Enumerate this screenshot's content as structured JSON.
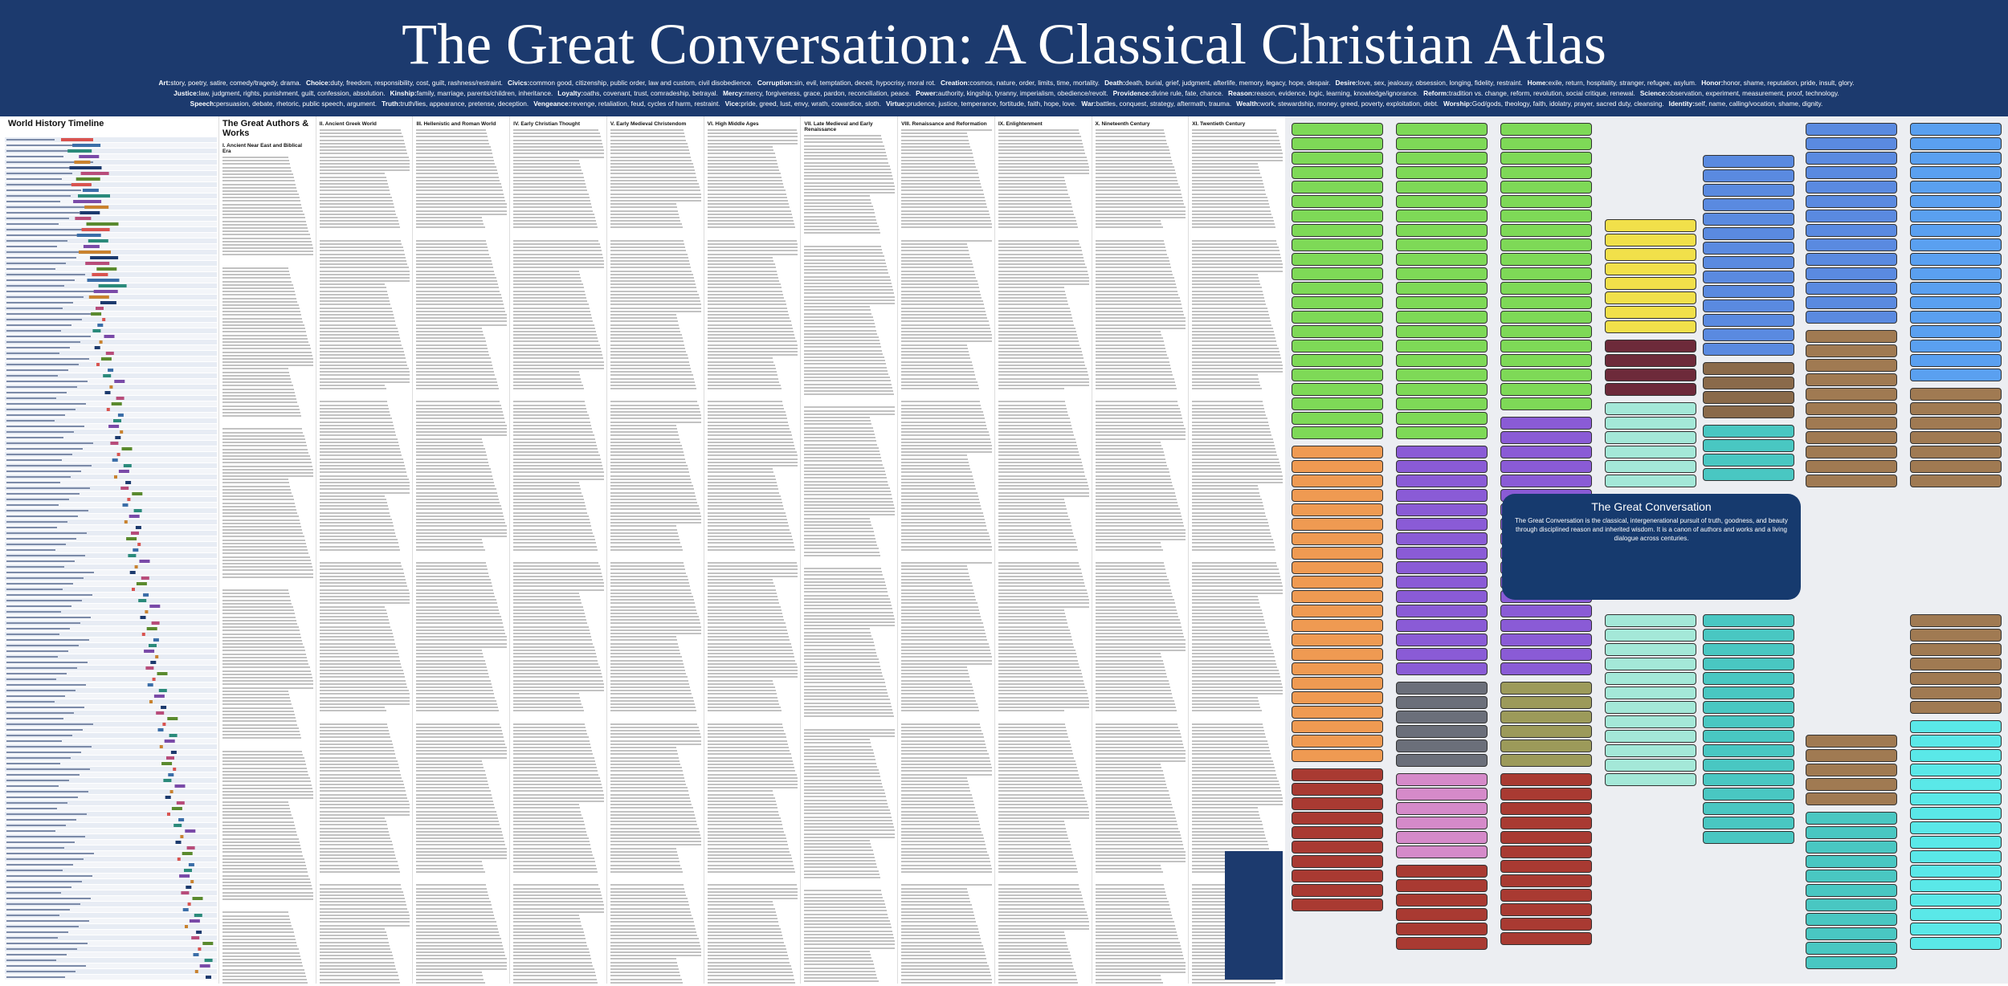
{
  "header": {
    "title": "The Great Conversation: A Classical Christian Atlas",
    "legend": [
      [
        {
          "label": "Art:",
          "words": "story, poetry, satire, comedy/tragedy, drama."
        },
        {
          "label": "Choice:",
          "words": "duty, freedom, responsibility, cost, guilt, rashness/restraint."
        },
        {
          "label": "Civics:",
          "words": "common good, citizenship, public order, law and custom, civil disobedience."
        },
        {
          "label": "Corruption:",
          "words": "sin, evil, temptation, deceit, hypocrisy, moral rot."
        },
        {
          "label": "Creation:",
          "words": "cosmos, nature, order, limits, time, mortality."
        },
        {
          "label": "Death:",
          "words": "death, burial, grief, judgment, afterlife, memory, legacy, hope, despair."
        },
        {
          "label": "Desire:",
          "words": "love, sex, jealousy, obsession, longing, fidelity, restraint."
        },
        {
          "label": "Home:",
          "words": "exile, return, hospitality, stranger, refugee, asylum."
        },
        {
          "label": "Honor:",
          "words": "honor, shame, reputation, pride, insult, glory."
        }
      ],
      [
        {
          "label": "Justice:",
          "words": "law, judgment, rights, punishment, guilt, confession, absolution."
        },
        {
          "label": "Kinship:",
          "words": "family, marriage, parents/children, inheritance."
        },
        {
          "label": "Loyalty:",
          "words": "oaths, covenant, trust, comradeship, betrayal."
        },
        {
          "label": "Mercy:",
          "words": "mercy, forgiveness, grace, pardon, reconciliation, peace."
        },
        {
          "label": "Power:",
          "words": "authority, kingship, tyranny, imperialism, obedience/revolt."
        },
        {
          "label": "Providence:",
          "words": "divine rule, fate, chance."
        },
        {
          "label": "Reason:",
          "words": "reason, evidence, logic, learning, knowledge/ignorance."
        },
        {
          "label": "Reform:",
          "words": "tradition vs. change, reform, revolution, social critique, renewal."
        },
        {
          "label": "Science:",
          "words": "observation, experiment, measurement, proof, technology."
        }
      ],
      [
        {
          "label": "Speech:",
          "words": "persuasion, debate, rhetoric, public speech, argument."
        },
        {
          "label": "Truth:",
          "words": "truth/lies, appearance, pretense, deception."
        },
        {
          "label": "Vengeance:",
          "words": "revenge, retaliation, feud, cycles of harm, restraint."
        },
        {
          "label": "Vice:",
          "words": "pride, greed, lust, envy, wrath, cowardice, sloth."
        },
        {
          "label": "Virtue:",
          "words": "prudence, justice, temperance, fortitude, faith, hope, love."
        },
        {
          "label": "War:",
          "words": "battles, conquest, strategy, aftermath, trauma."
        },
        {
          "label": "Wealth:",
          "words": "work, stewardship, money, greed, poverty, exploitation, debt."
        },
        {
          "label": "Worship:",
          "words": "God/gods, theology, faith, idolatry, prayer, sacred duty, cleansing."
        },
        {
          "label": "Identity:",
          "words": "self, name, calling/vocation, shame, dignity."
        }
      ]
    ]
  },
  "timeline": {
    "title": "World History Timeline"
  },
  "authors": {
    "title": "The Great Authors & Works",
    "sections": [
      "I. Ancient Near East and Biblical Era",
      "II. Ancient Greek World",
      "III. Hellenistic and Roman World",
      "IV. Early Christian Thought",
      "V. Early Medieval Christendom",
      "VI. High Middle Ages",
      "VII. Late Medieval and Early Renaissance",
      "VIII. Renaissance and Reformation",
      "IX. Enlightenment",
      "X. Nineteenth Century",
      "XI. Twentieth Century"
    ]
  },
  "center": {
    "title": "The Great Conversation",
    "text": "The Great Conversation is the classical, intergenerational pursuit of truth, goodness, and beauty through disciplined reason and inherited wisdom. It is a canon of authors and works and a living dialogue across centuries."
  }
}
